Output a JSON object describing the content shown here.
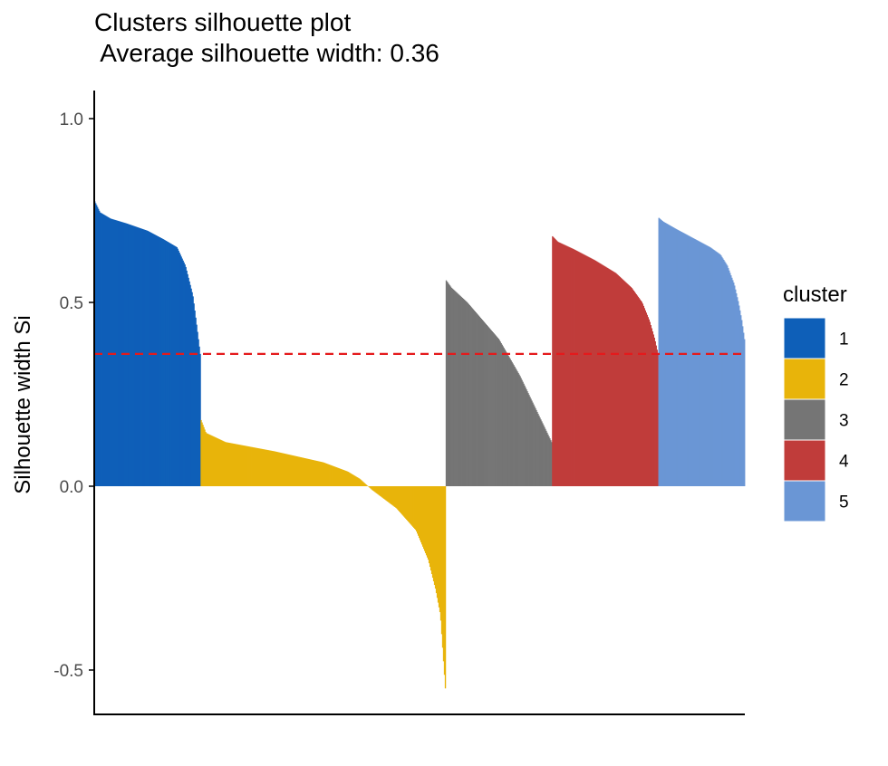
{
  "chart_data": {
    "type": "bar",
    "title": "Clusters silhouette plot",
    "subtitle": " Average silhouette width: 0.36",
    "ylabel": "Silhouette width Si",
    "xlabel": "",
    "ylim": [
      -0.6,
      1.06
    ],
    "yticks": [
      -0.5,
      0.0,
      0.5,
      1.0
    ],
    "ytick_labels": [
      "-0.5",
      "0.0",
      "0.5",
      "1.0"
    ],
    "average_line": {
      "value": 0.36,
      "color": "#E41A1C",
      "style": "dashed"
    },
    "grid": false,
    "legend": {
      "title": "cluster",
      "position": "right"
    },
    "series": [
      {
        "name": "1",
        "color": "#0E5FB8",
        "n": 118,
        "profile": [
          [
            0,
            0.775
          ],
          [
            0.05,
            0.745
          ],
          [
            0.15,
            0.728
          ],
          [
            0.3,
            0.715
          ],
          [
            0.5,
            0.695
          ],
          [
            0.65,
            0.672
          ],
          [
            0.78,
            0.65
          ],
          [
            0.86,
            0.6
          ],
          [
            0.93,
            0.52
          ],
          [
            0.97,
            0.43
          ],
          [
            1.0,
            0.36
          ]
        ]
      },
      {
        "name": "2",
        "color": "#E8B40A",
        "n": 272,
        "profile": [
          [
            0,
            0.18
          ],
          [
            0.02,
            0.145
          ],
          [
            0.1,
            0.12
          ],
          [
            0.3,
            0.095
          ],
          [
            0.5,
            0.065
          ],
          [
            0.6,
            0.04
          ],
          [
            0.65,
            0.02
          ],
          [
            0.7,
            -0.01
          ],
          [
            0.8,
            -0.06
          ],
          [
            0.88,
            -0.12
          ],
          [
            0.93,
            -0.2
          ],
          [
            0.96,
            -0.28
          ],
          [
            0.98,
            -0.35
          ],
          [
            0.99,
            -0.45
          ],
          [
            1.0,
            -0.55
          ]
        ]
      },
      {
        "name": "3",
        "color": "#757575",
        "n": 118,
        "profile": [
          [
            0,
            0.56
          ],
          [
            0.05,
            0.54
          ],
          [
            0.2,
            0.5
          ],
          [
            0.35,
            0.45
          ],
          [
            0.5,
            0.4
          ],
          [
            0.6,
            0.35
          ],
          [
            0.7,
            0.3
          ],
          [
            0.8,
            0.24
          ],
          [
            0.9,
            0.18
          ],
          [
            1.0,
            0.12
          ]
        ]
      },
      {
        "name": "4",
        "color": "#C03C3A",
        "n": 118,
        "profile": [
          [
            0,
            0.68
          ],
          [
            0.05,
            0.665
          ],
          [
            0.2,
            0.645
          ],
          [
            0.4,
            0.615
          ],
          [
            0.6,
            0.58
          ],
          [
            0.75,
            0.54
          ],
          [
            0.85,
            0.5
          ],
          [
            0.92,
            0.45
          ],
          [
            0.97,
            0.4
          ],
          [
            1.0,
            0.36
          ]
        ]
      },
      {
        "name": "5",
        "color": "#6A96D5",
        "n": 96,
        "profile": [
          [
            0,
            0.73
          ],
          [
            0.05,
            0.72
          ],
          [
            0.2,
            0.7
          ],
          [
            0.4,
            0.675
          ],
          [
            0.6,
            0.65
          ],
          [
            0.72,
            0.63
          ],
          [
            0.8,
            0.6
          ],
          [
            0.88,
            0.55
          ],
          [
            0.93,
            0.5
          ],
          [
            0.97,
            0.45
          ],
          [
            1.0,
            0.4
          ]
        ]
      }
    ]
  }
}
